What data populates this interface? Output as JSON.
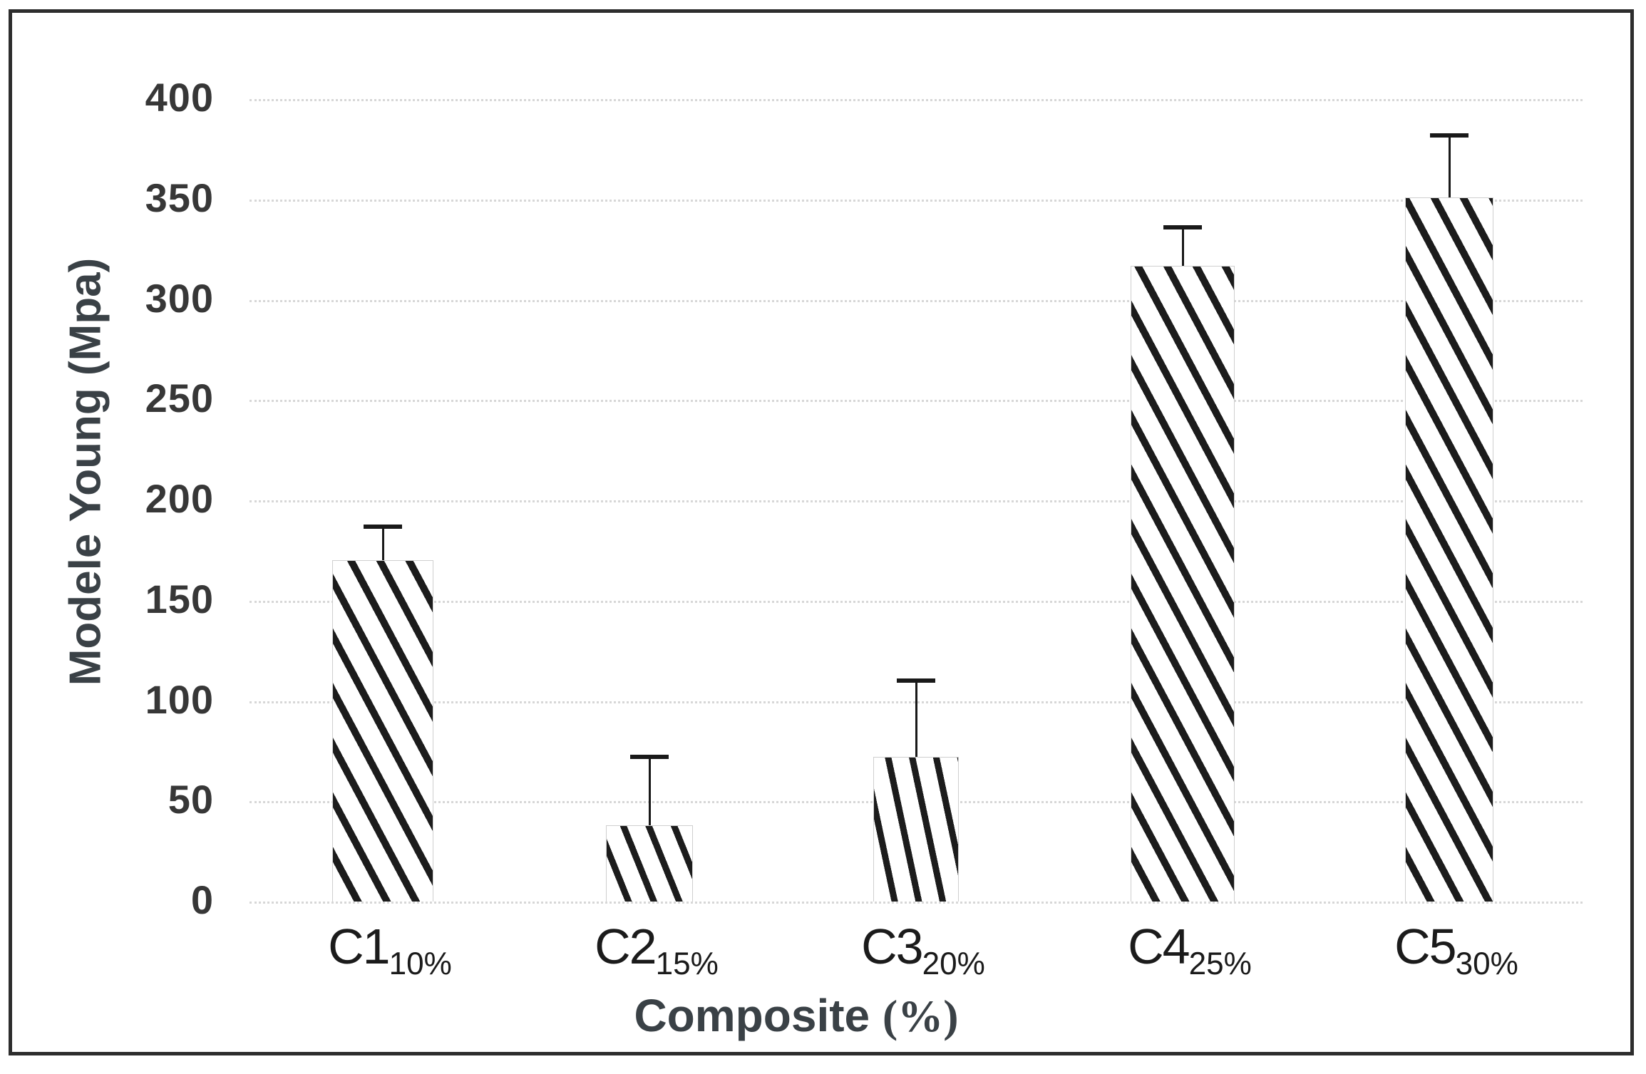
{
  "page": {
    "background": "#ffffff",
    "frame_border_color": "#2d2d2d"
  },
  "chart_data": {
    "type": "bar",
    "title": "",
    "ylabel": "Modele Young (Mpa)",
    "xlabel": "Composite (%)",
    "xlabel_parts": {
      "text": "Composite ",
      "unit": "(%)"
    },
    "categories": [
      {
        "label": "C1",
        "subscript": "10%"
      },
      {
        "label": "C2",
        "subscript": "15%"
      },
      {
        "label": "C3",
        "subscript": "20%"
      },
      {
        "label": "C4",
        "subscript": "25%"
      },
      {
        "label": "C5",
        "subscript": "30%"
      }
    ],
    "series": [
      {
        "name": "Modele Young (Mpa)",
        "values": [
          170,
          38,
          72,
          317,
          351
        ],
        "error_plus": [
          17,
          34,
          38,
          19,
          31
        ]
      }
    ],
    "ylim": [
      0,
      400
    ],
    "yticks": [
      0,
      50,
      100,
      150,
      200,
      250,
      300,
      350,
      400
    ],
    "grid": {
      "horizontal": true,
      "style": "dotted",
      "color": "#d7d7d7"
    },
    "bars": {
      "fill": "#ffffff",
      "hatch": "diagonal-black",
      "hatch_color": "#1c1c1c",
      "border_color": "#cfcfcf"
    },
    "error_bars": {
      "direction": "plus",
      "color": "#191919"
    },
    "legend_position": "none"
  }
}
